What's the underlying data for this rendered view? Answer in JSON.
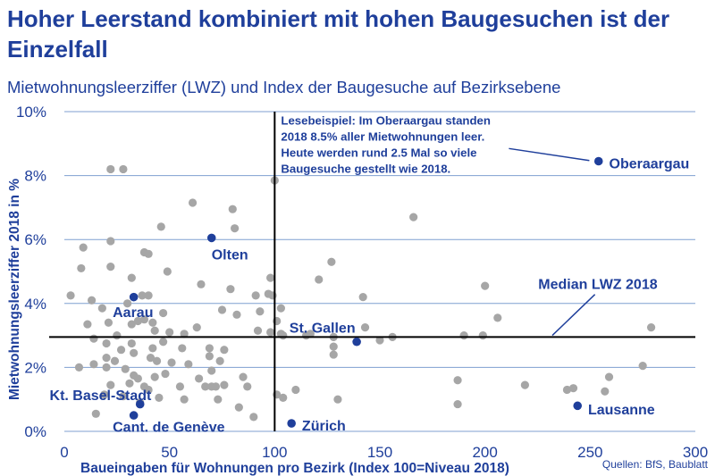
{
  "title": "Hoher Leerstand kombiniert mit hohen Baugesuchen ist der Einzelfall",
  "subtitle": "Mietwohnungsleerziffer (LWZ) und Index der Baugesuche auf Bezirksebene",
  "source": "Quellen: BfS, Baublatt",
  "chart_data": {
    "type": "scatter",
    "title": "Hoher Leerstand kombiniert mit hohen Baugesuchen ist der Einzelfall",
    "xlabel": "Baueingaben für Wohnungen pro Bezirk (Index 100=Niveau 2018)",
    "ylabel": "Mietwohnungsleerziffer 2018 in %",
    "xlim": [
      0,
      300
    ],
    "ylim": [
      0,
      10
    ],
    "x_ticks": [
      "0",
      "50",
      "100",
      "150",
      "200",
      "250",
      "300"
    ],
    "y_ticks": [
      "0%",
      "2%",
      "4%",
      "6%",
      "8%",
      "10%"
    ],
    "y_tick_values": [
      0,
      2,
      4,
      6,
      8,
      10
    ],
    "x_tick_values": [
      0,
      50,
      100,
      150,
      200,
      250,
      300
    ],
    "grid": "horizontal",
    "colors": {
      "points": "#a6a6a6",
      "highlight": "#1f3f9b",
      "grid": "#7f9fd0",
      "reference": "#000000"
    },
    "reference_lines": {
      "vertical_x": 100,
      "horizontal_y": 2.95
    },
    "median_label": "Median LWZ 2018",
    "median_label_anchor": [
      282,
      4.45
    ],
    "median_label_target": [
      232,
      3.0
    ],
    "annotation_lines": [
      "Lesebeispiel: Im Oberaargau standen",
      "2018 8.5% aller Mietwohnungen leer.",
      "Heute werden rund 2.5 Mal so viele",
      "Baugesuche gestellt wie 2018."
    ],
    "annotation_anchor": [
      103,
      9.6
    ],
    "annotation_target": [
      253,
      8.47
    ],
    "highlighted": [
      {
        "name": "Oberaargau",
        "x": 254,
        "y": 8.45,
        "label_at": [
          259,
          8.4
        ]
      },
      {
        "name": "Olten",
        "x": 70,
        "y": 6.05,
        "label_at": [
          70,
          5.55
        ]
      },
      {
        "name": "Aarau",
        "x": 33,
        "y": 4.2,
        "label_at": [
          23,
          3.75
        ]
      },
      {
        "name": "St. Gallen",
        "x": 139,
        "y": 2.8,
        "label_at": [
          107,
          3.25
        ]
      },
      {
        "name": "Kt. Basel-Stadt",
        "x": 36,
        "y": 0.85,
        "label_at": [
          -7,
          1.15
        ]
      },
      {
        "name": "Cant. de Genève",
        "x": 33,
        "y": 0.5,
        "label_at": [
          23,
          0.15
        ]
      },
      {
        "name": "Zürich",
        "x": 108,
        "y": 0.25,
        "label_at": [
          113,
          0.2
        ]
      },
      {
        "name": "Lausanne",
        "x": 244,
        "y": 0.8,
        "label_at": [
          249,
          0.7
        ]
      }
    ],
    "points": [
      [
        22,
        8.2
      ],
      [
        28,
        8.2
      ],
      [
        100,
        7.85
      ],
      [
        61,
        7.15
      ],
      [
        80,
        6.95
      ],
      [
        166,
        6.7
      ],
      [
        46,
        6.4
      ],
      [
        81,
        6.35
      ],
      [
        9,
        5.75
      ],
      [
        22,
        5.95
      ],
      [
        38,
        5.6
      ],
      [
        40,
        5.55
      ],
      [
        8,
        5.1
      ],
      [
        22,
        5.15
      ],
      [
        49,
        5.0
      ],
      [
        98,
        4.8
      ],
      [
        127,
        5.3
      ],
      [
        121,
        4.75
      ],
      [
        32,
        4.8
      ],
      [
        65,
        4.6
      ],
      [
        200,
        4.55
      ],
      [
        79,
        4.45
      ],
      [
        97,
        4.3
      ],
      [
        3,
        4.25
      ],
      [
        40,
        4.25
      ],
      [
        37,
        4.25
      ],
      [
        99,
        4.25
      ],
      [
        142,
        4.2
      ],
      [
        91,
        4.25
      ],
      [
        13,
        4.1
      ],
      [
        93,
        3.75
      ],
      [
        18,
        3.85
      ],
      [
        30,
        4.0
      ],
      [
        47,
        3.7
      ],
      [
        75,
        3.8
      ],
      [
        82,
        3.65
      ],
      [
        206,
        3.55
      ],
      [
        35,
        3.45
      ],
      [
        38,
        3.5
      ],
      [
        42,
        3.4
      ],
      [
        63,
        3.25
      ],
      [
        101,
        3.45
      ],
      [
        11,
        3.35
      ],
      [
        21,
        3.4
      ],
      [
        32,
        3.35
      ],
      [
        143,
        3.25
      ],
      [
        57,
        3.05
      ],
      [
        43,
        3.15
      ],
      [
        25,
        3.0
      ],
      [
        50,
        3.1
      ],
      [
        92,
        3.15
      ],
      [
        98,
        3.1
      ],
      [
        103,
        3.85
      ],
      [
        103,
        3.05
      ],
      [
        104,
        3.0
      ],
      [
        115,
        3.0
      ],
      [
        117,
        3.05
      ],
      [
        128,
        2.95
      ],
      [
        150,
        2.85
      ],
      [
        156,
        2.95
      ],
      [
        190,
        3.0
      ],
      [
        199,
        3.0
      ],
      [
        14,
        2.9
      ],
      [
        20,
        2.75
      ],
      [
        32,
        2.75
      ],
      [
        47,
        2.8
      ],
      [
        56,
        2.6
      ],
      [
        69,
        2.6
      ],
      [
        76,
        2.55
      ],
      [
        128,
        2.65
      ],
      [
        20,
        2.3
      ],
      [
        27,
        2.55
      ],
      [
        33,
        2.45
      ],
      [
        42,
        2.6
      ],
      [
        69,
        2.35
      ],
      [
        7,
        2.0
      ],
      [
        14,
        2.1
      ],
      [
        20,
        2.0
      ],
      [
        24,
        2.2
      ],
      [
        29,
        1.95
      ],
      [
        41,
        2.3
      ],
      [
        44,
        2.2
      ],
      [
        51,
        2.15
      ],
      [
        59,
        2.1
      ],
      [
        70,
        1.9
      ],
      [
        74,
        2.2
      ],
      [
        128,
        2.4
      ],
      [
        275,
        2.05
      ],
      [
        35,
        1.65
      ],
      [
        33,
        1.75
      ],
      [
        43,
        1.7
      ],
      [
        48,
        1.8
      ],
      [
        64,
        1.65
      ],
      [
        76,
        1.45
      ],
      [
        85,
        1.7
      ],
      [
        22,
        1.45
      ],
      [
        31,
        1.5
      ],
      [
        38,
        1.4
      ],
      [
        40,
        1.3
      ],
      [
        55,
        1.4
      ],
      [
        67,
        1.4
      ],
      [
        70,
        1.4
      ],
      [
        72,
        1.4
      ],
      [
        87,
        1.4
      ],
      [
        187,
        1.6
      ],
      [
        219,
        1.45
      ],
      [
        239,
        1.3
      ],
      [
        242,
        1.35
      ],
      [
        257,
        1.25
      ],
      [
        259,
        1.7
      ],
      [
        19,
        1.15
      ],
      [
        28,
        1.1
      ],
      [
        45,
        1.05
      ],
      [
        57,
        1.0
      ],
      [
        73,
        1.0
      ],
      [
        101,
        1.15
      ],
      [
        104,
        1.05
      ],
      [
        110,
        1.3
      ],
      [
        130,
        1.0
      ],
      [
        15,
        0.55
      ],
      [
        36,
        0.9
      ],
      [
        83,
        0.75
      ],
      [
        90,
        0.45
      ],
      [
        187,
        0.85
      ],
      [
        279,
        3.25
      ]
    ]
  }
}
